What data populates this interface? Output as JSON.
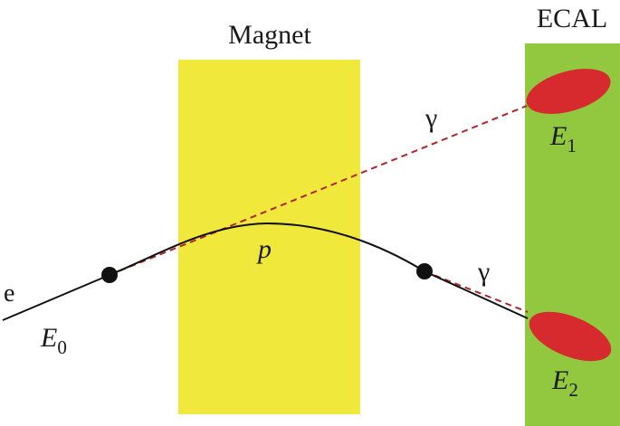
{
  "colors": {
    "magnet_fill": "#F1E83C",
    "ecal_fill": "#92C840",
    "cluster_fill": "#D62A2E",
    "photon_line": "#B0252A",
    "track_line": "#111111",
    "vertex_fill": "#111111"
  },
  "labels": {
    "magnet": "Magnet",
    "ecal": "ECAL",
    "electron": "e",
    "e0_symbol": "E",
    "e0_subscript": "0",
    "momentum": "p",
    "gamma_upper": "γ",
    "gamma_lower": "γ",
    "e1_symbol": "E",
    "e1_subscript": "1",
    "e2_symbol": "E",
    "e2_subscript": "2"
  }
}
